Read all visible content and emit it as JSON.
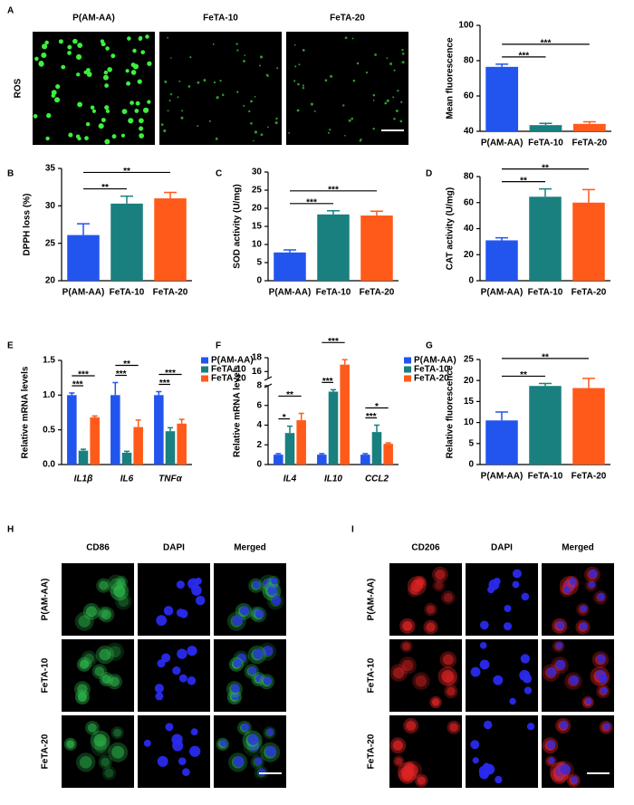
{
  "chart_data": [
    {
      "type": "bar",
      "ylabel": "Mean fluorescence",
      "categories": [
        "P(AM-AA)",
        "FeTA-10",
        "FeTA-20"
      ],
      "values": [
        76.5,
        43.5,
        44.2
      ],
      "errors": [
        1.5,
        1.0,
        1.2
      ],
      "colors": [
        "#2255ee",
        "#1a7f7f",
        "#ff5a1a"
      ],
      "ylim": [
        40,
        100
      ],
      "yticks": [
        40,
        60,
        80,
        100
      ],
      "annotations": [
        {
          "between": [
            "P(AM-AA)",
            "FeTA-10"
          ],
          "text": "***"
        },
        {
          "between": [
            "P(AM-AA)",
            "FeTA-20"
          ],
          "text": "***"
        }
      ]
    },
    {
      "type": "bar",
      "panel": "B",
      "ylabel": "DPPH loss (%)",
      "categories": [
        "P(AM-AA)",
        "FeTA-10",
        "FeTA-20"
      ],
      "values": [
        26.1,
        30.3,
        31.0
      ],
      "errors": [
        1.5,
        1.0,
        0.8
      ],
      "colors": [
        "#2255ee",
        "#1a7f7f",
        "#ff5a1a"
      ],
      "ylim": [
        20,
        35
      ],
      "yticks": [
        20,
        25,
        30,
        35
      ],
      "annotations": [
        {
          "between": [
            "P(AM-AA)",
            "FeTA-10"
          ],
          "text": "**"
        },
        {
          "between": [
            "P(AM-AA)",
            "FeTA-20"
          ],
          "text": "**"
        }
      ]
    },
    {
      "type": "bar",
      "panel": "C",
      "ylabel": "SOD activity (U/mg)",
      "categories": [
        "P(AM-AA)",
        "FeTA-10",
        "FeTA-20"
      ],
      "values": [
        7.8,
        18.3,
        18.0
      ],
      "errors": [
        0.7,
        1.0,
        1.2
      ],
      "colors": [
        "#2255ee",
        "#1a7f7f",
        "#ff5a1a"
      ],
      "ylim": [
        0,
        30
      ],
      "yticks": [
        0,
        5,
        10,
        15,
        20,
        25,
        30
      ],
      "annotations": [
        {
          "between": [
            "P(AM-AA)",
            "FeTA-10"
          ],
          "text": "***"
        },
        {
          "between": [
            "P(AM-AA)",
            "FeTA-20"
          ],
          "text": "***"
        }
      ]
    },
    {
      "type": "bar",
      "panel": "D",
      "ylabel": "CAT activity (U/mg)",
      "categories": [
        "P(AM-AA)",
        "FeTA-10",
        "FeTA-20"
      ],
      "values": [
        31.0,
        64.5,
        60.0
      ],
      "errors": [
        2.0,
        6.0,
        10.0
      ],
      "colors": [
        "#2255ee",
        "#1a7f7f",
        "#ff5a1a"
      ],
      "ylim": [
        0,
        80
      ],
      "yticks": [
        0,
        20,
        40,
        60,
        80
      ],
      "annotations": [
        {
          "between": [
            "P(AM-AA)",
            "FeTA-10"
          ],
          "text": "**"
        },
        {
          "between": [
            "P(AM-AA)",
            "FeTA-20"
          ],
          "text": "**"
        }
      ]
    },
    {
      "type": "bar",
      "panel": "E",
      "ylabel": "Relative mRNA levels",
      "categories": [
        "IL1β",
        "IL6",
        "TNFα"
      ],
      "category_style": "italic",
      "series": [
        {
          "name": "P(AM-AA)",
          "color": "#2255ee",
          "values": [
            1.0,
            1.0,
            1.0
          ],
          "errors": [
            0.03,
            0.18,
            0.05
          ]
        },
        {
          "name": "FeTA-10",
          "color": "#1a7f7f",
          "values": [
            0.2,
            0.17,
            0.48
          ],
          "errors": [
            0.02,
            0.02,
            0.05
          ]
        },
        {
          "name": "FeTA-20",
          "color": "#ff5a1a",
          "values": [
            0.68,
            0.54,
            0.59
          ],
          "errors": [
            0.02,
            0.1,
            0.06
          ]
        }
      ],
      "ylim": [
        0,
        1.5
      ],
      "yticks": [
        {
          "value": 0,
          "label": "0.0"
        },
        0.5,
        {
          "value": 1,
          "label": "1.0"
        },
        1.5
      ],
      "legend": "right",
      "annotations": [
        {
          "category": "IL1β",
          "between": [
            "P(AM-AA)",
            "FeTA-10"
          ],
          "text": "***"
        },
        {
          "category": "IL1β",
          "between": [
            "P(AM-AA)",
            "FeTA-20"
          ],
          "text": "***"
        },
        {
          "category": "IL6",
          "between": [
            "P(AM-AA)",
            "FeTA-10"
          ],
          "text": "***"
        },
        {
          "category": "IL6",
          "between": [
            "P(AM-AA)",
            "FeTA-20"
          ],
          "text": "**"
        },
        {
          "category": "TNFα",
          "between": [
            "P(AM-AA)",
            "FeTA-10"
          ],
          "text": "***"
        },
        {
          "category": "TNFα",
          "between": [
            "P(AM-AA)",
            "FeTA-20"
          ],
          "text": "***"
        }
      ]
    },
    {
      "type": "bar",
      "panel": "F",
      "ylabel": "Relative mRNA levels",
      "categories": [
        "IL4",
        "IL10",
        "CCL2"
      ],
      "category_style": "italic",
      "series": [
        {
          "name": "P(AM-AA)",
          "color": "#2255ee",
          "values": [
            1.0,
            1.0,
            1.0
          ],
          "errors": [
            0.1,
            0.1,
            0.1
          ]
        },
        {
          "name": "FeTA-10",
          "color": "#1a7f7f",
          "values": [
            3.2,
            7.4,
            3.3
          ],
          "errors": [
            0.7,
            0.2,
            0.7
          ]
        },
        {
          "name": "FeTA-20",
          "color": "#ff5a1a",
          "values": [
            4.5,
            17.0,
            2.1
          ],
          "errors": [
            0.7,
            0.7,
            0.1
          ]
        }
      ],
      "ylim": [
        0,
        18
      ],
      "ybreak": [
        8,
        15
      ],
      "yticks": [
        0,
        2,
        4,
        6,
        8,
        16,
        18
      ],
      "legend": "right",
      "annotations": [
        {
          "category": "IL4",
          "between": [
            "P(AM-AA)",
            "FeTA-10"
          ],
          "text": "*"
        },
        {
          "category": "IL4",
          "between": [
            "P(AM-AA)",
            "FeTA-20"
          ],
          "text": "**"
        },
        {
          "category": "IL10",
          "between": [
            "P(AM-AA)",
            "FeTA-10"
          ],
          "text": "***"
        },
        {
          "category": "IL10",
          "between": [
            "P(AM-AA)",
            "FeTA-20"
          ],
          "text": "***"
        },
        {
          "category": "CCL2",
          "between": [
            "P(AM-AA)",
            "FeTA-10"
          ],
          "text": "***"
        },
        {
          "category": "CCL2",
          "between": [
            "P(AM-AA)",
            "FeTA-20"
          ],
          "text": "*"
        }
      ]
    },
    {
      "type": "bar",
      "panel": "G",
      "ylabel": "Relative fluorescence",
      "categories": [
        "P(AM-AA)",
        "FeTA-10",
        "FeTA-20"
      ],
      "values": [
        10.5,
        18.7,
        18.2
      ],
      "errors": [
        2.0,
        0.6,
        2.3
      ],
      "colors": [
        "#2255ee",
        "#1a7f7f",
        "#ff5a1a"
      ],
      "ylim": [
        0,
        25
      ],
      "yticks": [
        0,
        5,
        10,
        15,
        20,
        25
      ],
      "annotations": [
        {
          "between": [
            "P(AM-AA)",
            "FeTA-10"
          ],
          "text": "**"
        },
        {
          "between": [
            "P(AM-AA)",
            "FeTA-20"
          ],
          "text": "**"
        }
      ]
    }
  ],
  "image_panels": [
    {
      "panel": "A",
      "columns": [
        "P(AM-AA)",
        "FeTA-10",
        "FeTA-20"
      ],
      "column_colors": [
        "#000000",
        "#000000",
        "#000000"
      ],
      "row_label": "ROS",
      "scale_bar": "50 um"
    },
    {
      "panel": "H",
      "columns": [
        "CD86",
        "DAPI",
        "Merged"
      ],
      "column_colors": [
        "#2db84d",
        "#2a2aee",
        "#000000"
      ],
      "rows": [
        "P(AM-AA)",
        "FeTA-10",
        "FeTA-20"
      ],
      "scale_bar": "25 um"
    },
    {
      "panel": "I",
      "columns": [
        "CD206",
        "DAPI",
        "Merged"
      ],
      "column_colors": [
        "#e02424",
        "#2a2aee",
        "#000000"
      ],
      "rows": [
        "P(AM-AA)",
        "FeTA-10",
        "FeTA-20"
      ],
      "scale_bar": "25 um"
    }
  ]
}
